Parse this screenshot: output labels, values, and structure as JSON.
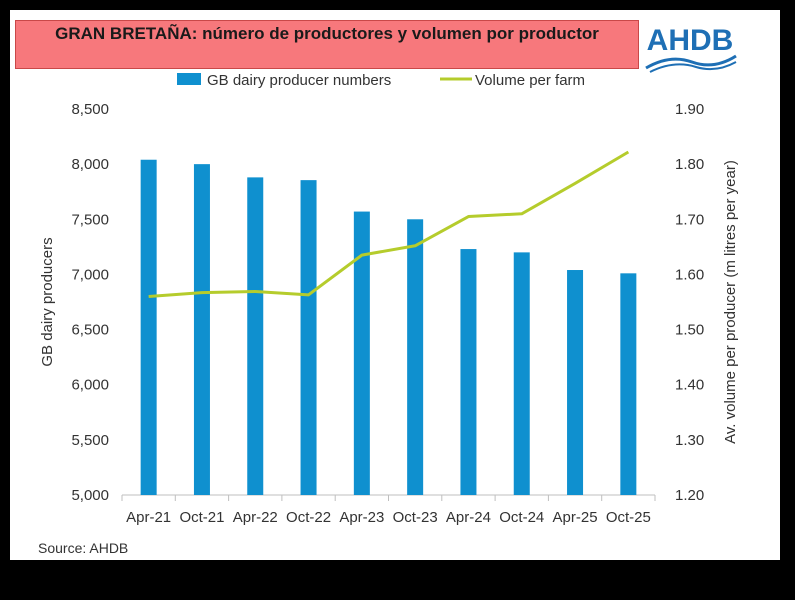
{
  "title": "GRAN BRETAÑA: número de productores y volumen por productor",
  "logo": {
    "text": "AHDB",
    "color": "#1e6fb5"
  },
  "source": "Source: AHDB",
  "colors": {
    "bar": "#0f90cf",
    "line": "#b5cc2c",
    "title_bg": "#f7787c"
  },
  "chart_data": {
    "type": "bar",
    "categories": [
      "Apr-21",
      "Oct-21",
      "Apr-22",
      "Oct-22",
      "Apr-23",
      "Oct-23",
      "Apr-24",
      "Oct-24",
      "Apr-25",
      "Oct-25"
    ],
    "series": [
      {
        "name": "GB dairy producer numbers",
        "type": "bar",
        "axis": "left",
        "values": [
          8040,
          8000,
          7880,
          7855,
          7570,
          7500,
          7230,
          7200,
          7040,
          7010
        ]
      },
      {
        "name": "Volume per farm",
        "type": "line",
        "axis": "right",
        "values": [
          1.56,
          1.567,
          1.569,
          1.563,
          1.635,
          1.652,
          1.705,
          1.71,
          1.765,
          1.822
        ]
      }
    ],
    "ylim": [
      5000,
      8500
    ],
    "yticks": [
      "5,000",
      "5,500",
      "6,000",
      "6,500",
      "7,000",
      "7,500",
      "8,000",
      "8,500"
    ],
    "ylim_right": [
      1.2,
      1.9
    ],
    "yticks_right": [
      "1.20",
      "1.30",
      "1.40",
      "1.50",
      "1.60",
      "1.70",
      "1.80",
      "1.90"
    ],
    "ylabel": "GB dairy producers",
    "ylabel_right": "Av. volume per producer (m litres per year)",
    "legend": "top"
  }
}
